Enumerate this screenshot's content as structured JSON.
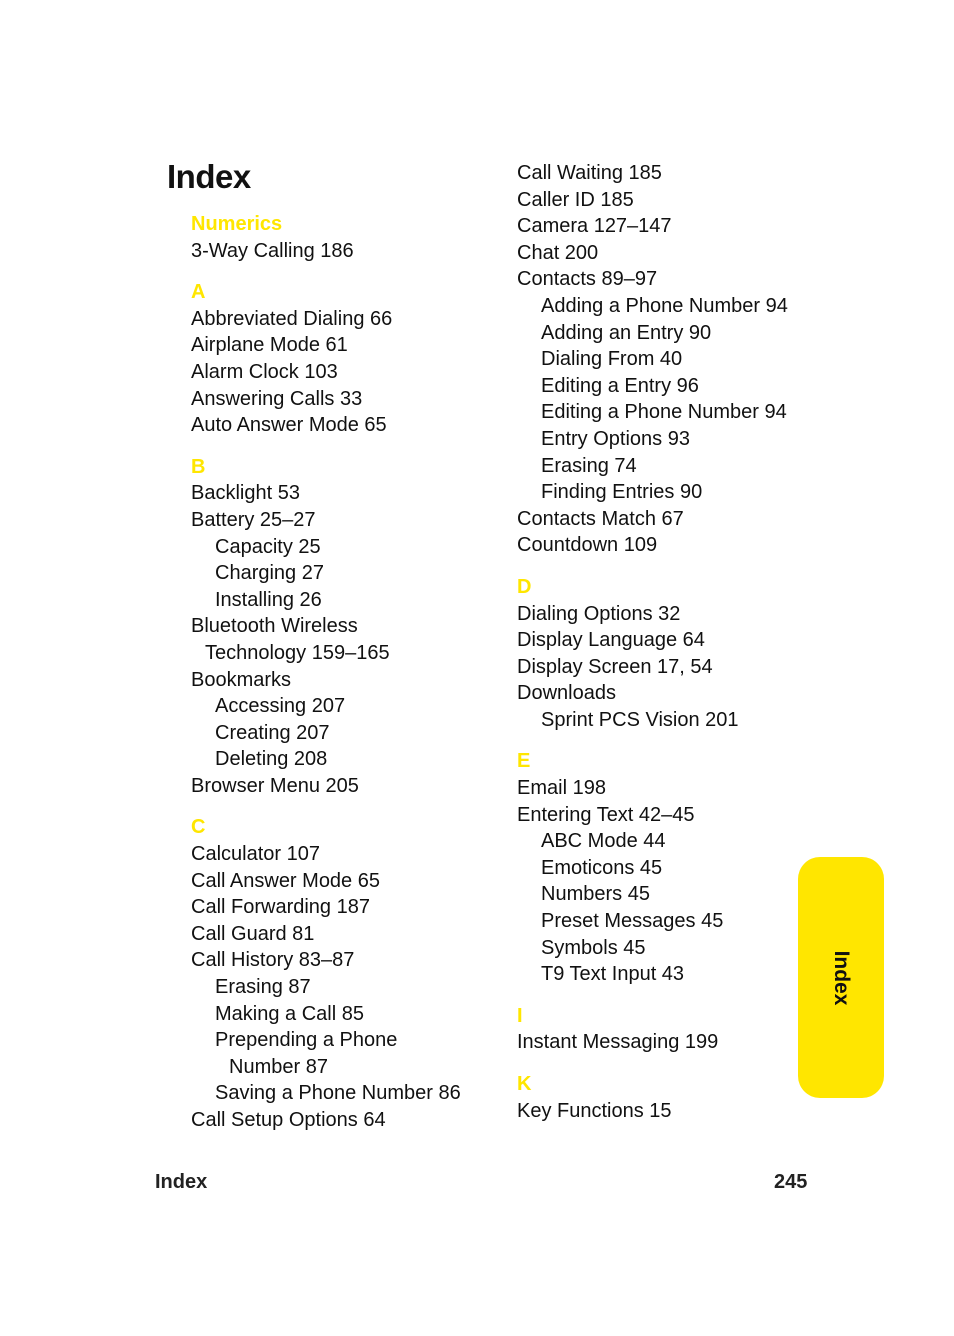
{
  "page_title": "Index",
  "accent_color": "#FFE600",
  "columns": [
    [
      {
        "heading": "Numerics",
        "entries": [
          {
            "text": "3-Way Calling  186",
            "level": 0
          }
        ]
      },
      {
        "heading": "A",
        "entries": [
          {
            "text": "Abbreviated Dialing  66",
            "level": 0
          },
          {
            "text": "Airplane Mode  61",
            "level": 0
          },
          {
            "text": "Alarm Clock  103",
            "level": 0
          },
          {
            "text": "Answering Calls  33",
            "level": 0
          },
          {
            "text": "Auto Answer Mode  65",
            "level": 0
          }
        ]
      },
      {
        "heading": "B",
        "entries": [
          {
            "text": "Backlight  53",
            "level": 0
          },
          {
            "text": "Battery  25–27",
            "level": 0
          },
          {
            "text": "Capacity  25",
            "level": 1
          },
          {
            "text": "Charging  27",
            "level": 1
          },
          {
            "text": "Installing  26",
            "level": 1
          },
          {
            "text": "Bluetooth Wireless",
            "level": 0
          },
          {
            "text": "Technology  159–165",
            "level": 0,
            "continuation": true
          },
          {
            "text": "Bookmarks",
            "level": 0
          },
          {
            "text": "Accessing  207",
            "level": 1
          },
          {
            "text": "Creating  207",
            "level": 1
          },
          {
            "text": "Deleting  208",
            "level": 1
          },
          {
            "text": "Browser Menu  205",
            "level": 0
          }
        ]
      },
      {
        "heading": "C",
        "entries": [
          {
            "text": "Calculator  107",
            "level": 0
          },
          {
            "text": "Call Answer Mode  65",
            "level": 0
          },
          {
            "text": "Call Forwarding  187",
            "level": 0
          },
          {
            "text": "Call Guard  81",
            "level": 0
          },
          {
            "text": "Call History  83–87",
            "level": 0
          },
          {
            "text": "Erasing  87",
            "level": 1
          },
          {
            "text": "Making a Call  85",
            "level": 1
          },
          {
            "text": "Prepending a Phone",
            "level": 1
          },
          {
            "text": "Number  87",
            "level": 1,
            "continuation": true
          },
          {
            "text": "Saving a Phone Number  86",
            "level": 1
          },
          {
            "text": "Call Setup Options  64",
            "level": 0
          }
        ]
      }
    ],
    [
      {
        "heading": "",
        "entries": [
          {
            "text": "Call Waiting  185",
            "level": 0
          },
          {
            "text": "Caller ID  185",
            "level": 0
          },
          {
            "text": "Camera  127–147",
            "level": 0
          },
          {
            "text": "Chat  200",
            "level": 0
          },
          {
            "text": "Contacts  89–97",
            "level": 0
          },
          {
            "text": "Adding a Phone Number  94",
            "level": 1
          },
          {
            "text": "Adding an Entry  90",
            "level": 1
          },
          {
            "text": "Dialing From  40",
            "level": 1
          },
          {
            "text": "Editing a Entry  96",
            "level": 1
          },
          {
            "text": "Editing a Phone Number  94",
            "level": 1
          },
          {
            "text": "Entry Options  93",
            "level": 1
          },
          {
            "text": "Erasing  74",
            "level": 1
          },
          {
            "text": "Finding Entries  90",
            "level": 1
          },
          {
            "text": "Contacts Match  67",
            "level": 0
          },
          {
            "text": "Countdown  109",
            "level": 0
          }
        ]
      },
      {
        "heading": "D",
        "entries": [
          {
            "text": "Dialing Options  32",
            "level": 0
          },
          {
            "text": "Display Language  64",
            "level": 0
          },
          {
            "text": "Display Screen  17, 54",
            "level": 0
          },
          {
            "text": "Downloads",
            "level": 0
          },
          {
            "text": "Sprint PCS Vision  201",
            "level": 1
          }
        ]
      },
      {
        "heading": "E",
        "entries": [
          {
            "text": "Email  198",
            "level": 0
          },
          {
            "text": "Entering Text  42–45",
            "level": 0
          },
          {
            "text": "ABC Mode  44",
            "level": 1
          },
          {
            "text": "Emoticons  45",
            "level": 1
          },
          {
            "text": "Numbers  45",
            "level": 1
          },
          {
            "text": "Preset Messages  45",
            "level": 1
          },
          {
            "text": "Symbols  45",
            "level": 1
          },
          {
            "text": "T9 Text Input  43",
            "level": 1
          }
        ]
      },
      {
        "heading": "I",
        "entries": [
          {
            "text": "Instant Messaging  199",
            "level": 0
          }
        ]
      },
      {
        "heading": "K",
        "entries": [
          {
            "text": "Key Functions  15",
            "level": 0
          }
        ]
      }
    ]
  ],
  "side_tab": "Index",
  "footer": {
    "section": "Index",
    "page_number": "245"
  }
}
